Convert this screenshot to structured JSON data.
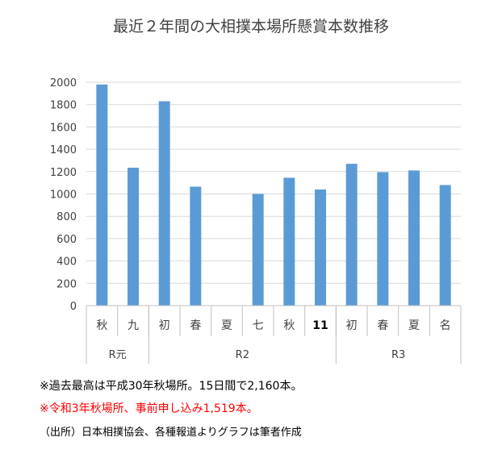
{
  "chart_data": {
    "type": "bar",
    "title": "最近２年間の大相撲本場所懸賞本数推移",
    "xlabel": "",
    "ylabel": "",
    "ylim": [
      0,
      2000
    ],
    "yticks": [
      0,
      200,
      400,
      600,
      800,
      1000,
      1200,
      1400,
      1600,
      1800,
      2000
    ],
    "grid": true,
    "categories": [
      "秋",
      "九",
      "初",
      "春",
      "夏",
      "七",
      "秋",
      "11",
      "初",
      "春",
      "夏",
      "名"
    ],
    "values": [
      1980,
      1235,
      1830,
      1065,
      null,
      1000,
      1145,
      1040,
      1270,
      1195,
      1210,
      1080
    ],
    "groups": [
      {
        "label": "R元",
        "span": 2
      },
      {
        "label": "R2",
        "span": 6
      },
      {
        "label": "R3",
        "span": 4
      }
    ],
    "bar_color": "#5b9bd5"
  },
  "notes": {
    "line1": "※過去最高は平成30年秋場所。15日間で2,160本。",
    "line2": "※令和3年秋場所、事前申し込み1,519本。",
    "line2_color": "#ff0000",
    "line3": "（出所）日本相撲協会、各種報道よりグラフは筆者作成"
  }
}
